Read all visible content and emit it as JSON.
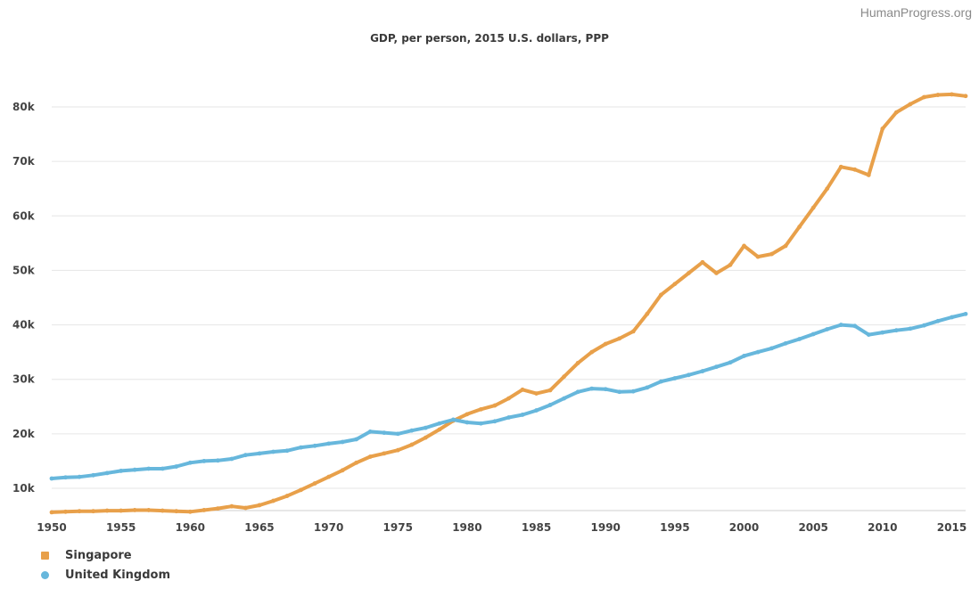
{
  "source_label": "HumanProgress.org",
  "chart_data": {
    "type": "line",
    "title": "GDP, per person, 2015 U.S. dollars, PPP",
    "xlabel": "",
    "ylabel": "",
    "xlim": [
      1950,
      2016
    ],
    "ylim": [
      5000,
      85000
    ],
    "yticks": [
      10000,
      20000,
      30000,
      40000,
      50000,
      60000,
      70000,
      80000
    ],
    "ytick_labels": [
      "10k",
      "20k",
      "30k",
      "40k",
      "50k",
      "60k",
      "70k",
      "80k"
    ],
    "xticks": [
      1950,
      1955,
      1960,
      1965,
      1970,
      1975,
      1980,
      1985,
      1990,
      1995,
      2000,
      2005,
      2010,
      2015
    ],
    "xtick_labels": [
      "1950",
      "1955",
      "1960",
      "1965",
      "1970",
      "1975",
      "1980",
      "1985",
      "1990",
      "1995",
      "2000",
      "2005",
      "2010",
      "2015"
    ],
    "grid": true,
    "legend_position": "bottom-left",
    "x": [
      1950,
      1951,
      1952,
      1953,
      1954,
      1955,
      1956,
      1957,
      1958,
      1959,
      1960,
      1961,
      1962,
      1963,
      1964,
      1965,
      1966,
      1967,
      1968,
      1969,
      1970,
      1971,
      1972,
      1973,
      1974,
      1975,
      1976,
      1977,
      1978,
      1979,
      1980,
      1981,
      1982,
      1983,
      1984,
      1985,
      1986,
      1987,
      1988,
      1989,
      1990,
      1991,
      1992,
      1993,
      1994,
      1995,
      1996,
      1997,
      1998,
      1999,
      2000,
      2001,
      2002,
      2003,
      2004,
      2005,
      2006,
      2007,
      2008,
      2009,
      2010,
      2011,
      2012,
      2013,
      2014,
      2015,
      2016
    ],
    "series": [
      {
        "name": "Singapore",
        "color": "#e8a04a",
        "values": [
          5600,
          5700,
          5800,
          5800,
          5900,
          5900,
          6000,
          6000,
          5900,
          5800,
          5700,
          6000,
          6300,
          6700,
          6400,
          6900,
          7700,
          8600,
          9700,
          10900,
          12100,
          13300,
          14700,
          15800,
          16400,
          17000,
          18000,
          19300,
          20800,
          22400,
          23600,
          24500,
          25200,
          26500,
          28100,
          27400,
          28000,
          30500,
          33000,
          35000,
          36500,
          37500,
          38800,
          42000,
          45500,
          47500,
          49500,
          51500,
          49500,
          51000,
          54500,
          52500,
          53000,
          54500,
          58000,
          61500,
          65000,
          69000,
          68500,
          67500,
          76000,
          79000,
          80500,
          81800,
          82200,
          82300,
          82000
        ]
      },
      {
        "name": "United Kingdom",
        "color": "#67b7dc",
        "values": [
          11800,
          12000,
          12100,
          12400,
          12800,
          13200,
          13400,
          13600,
          13600,
          14000,
          14700,
          15000,
          15100,
          15400,
          16100,
          16400,
          16700,
          16900,
          17500,
          17800,
          18200,
          18500,
          19000,
          20400,
          20200,
          20000,
          20600,
          21100,
          21900,
          22600,
          22100,
          21900,
          22300,
          23000,
          23500,
          24300,
          25300,
          26500,
          27700,
          28300,
          28200,
          27700,
          27800,
          28500,
          29600,
          30200,
          30800,
          31500,
          32300,
          33100,
          34300,
          35000,
          35700,
          36600,
          37400,
          38300,
          39200,
          40000,
          39800,
          38200,
          38600,
          39000,
          39300,
          39900,
          40700,
          41400,
          42000
        ]
      }
    ]
  }
}
